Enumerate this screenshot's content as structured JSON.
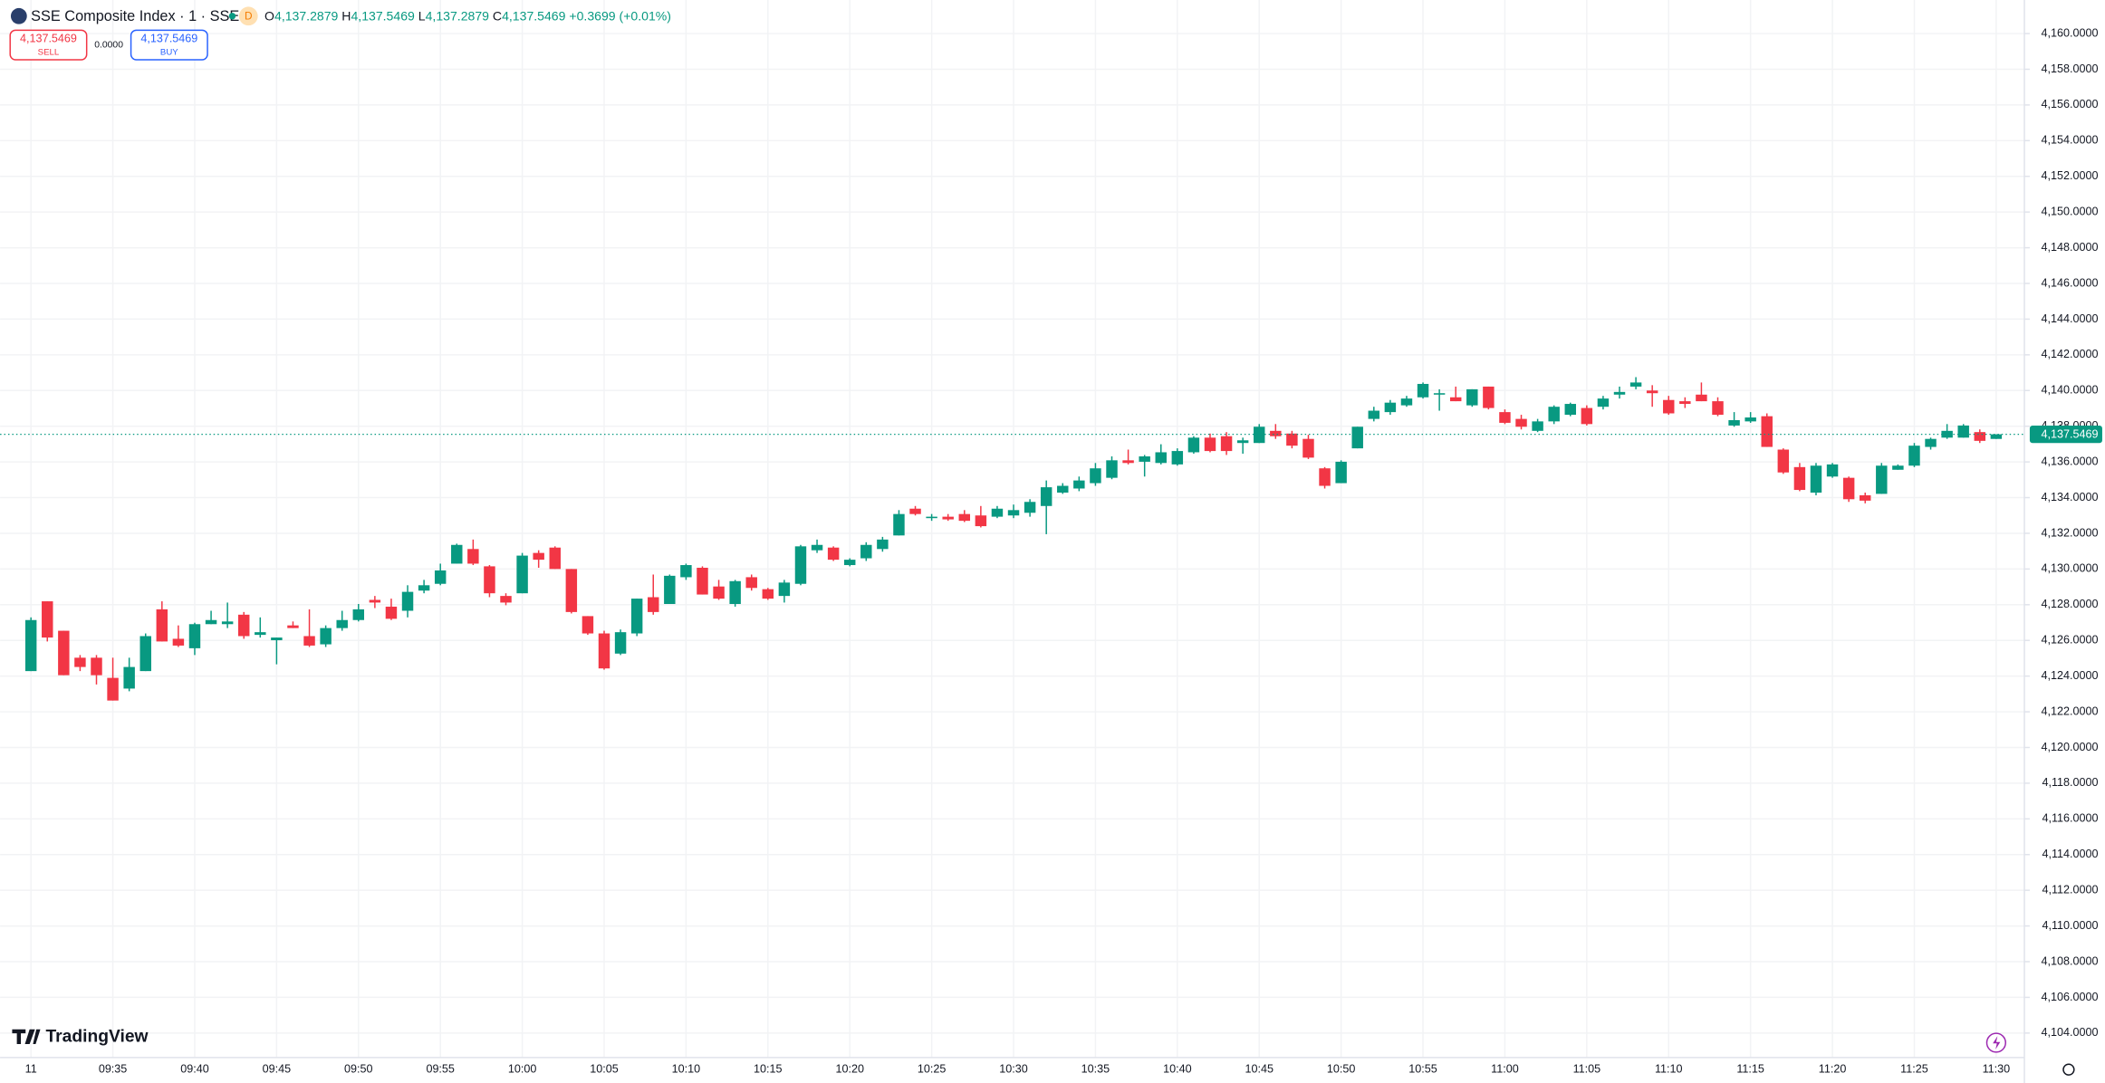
{
  "header": {
    "symbol": "SSE Composite Index · 1 · SSE",
    "badge": "D",
    "ohlc": [
      {
        "key": "O",
        "value": "4,137.2879"
      },
      {
        "key": "H",
        "value": "4,137.5469"
      },
      {
        "key": "L",
        "value": "4,137.2879"
      },
      {
        "key": "C",
        "value": "4,137.5469"
      }
    ],
    "change": "+0.3699 (+0.01%)"
  },
  "trade": {
    "sell_price": "4,137.5469",
    "sell_label": "SELL",
    "spread": "0.0000",
    "buy_price": "4,137.5469",
    "buy_label": "BUY"
  },
  "brand": "TradingView",
  "chart_data": {
    "type": "candlestick",
    "up_color": "#089981",
    "down_color": "#f23645",
    "grid": true,
    "categories": [
      "11",
      null,
      null,
      null,
      null,
      "09:35",
      null,
      null,
      null,
      null,
      "09:40",
      null,
      null,
      null,
      null,
      "09:45",
      null,
      null,
      null,
      null,
      "09:50",
      null,
      null,
      null,
      null,
      "09:55",
      null,
      null,
      null,
      null,
      "10:00",
      null,
      null,
      null,
      null,
      "10:05",
      null,
      null,
      null,
      null,
      "10:10",
      null,
      null,
      null,
      null,
      "10:15",
      null,
      null,
      null,
      null,
      "10:20",
      null,
      null,
      null,
      null,
      "10:25",
      null,
      null,
      null,
      null,
      "10:30",
      null,
      null,
      null,
      null,
      "10:35",
      null,
      null,
      null,
      null,
      "10:40",
      null,
      null,
      null,
      null,
      "10:45",
      null,
      null,
      null,
      null,
      "10:50",
      null,
      null,
      null,
      null,
      "10:55",
      null,
      null,
      null,
      null,
      "11:00",
      null,
      null,
      null,
      null,
      "11:05",
      null,
      null,
      null,
      null,
      "11:10",
      null,
      null,
      null,
      null,
      "11:15",
      null,
      null,
      null,
      null,
      "11:20",
      null,
      null,
      null,
      null,
      "11:25",
      null,
      null,
      null,
      null,
      "11:30"
    ],
    "open": [
      4124.28,
      4128.19,
      4126.54,
      4125.03,
      4125.03,
      4123.9,
      4123.3,
      4124.28,
      4127.74,
      4126.09,
      4125.56,
      4126.91,
      4126.91,
      4127.44,
      4126.31,
      4126.01,
      4126.84,
      4126.24,
      4125.78,
      4126.69,
      4127.14,
      4128.27,
      4127.89,
      4127.66,
      4128.79,
      4129.17,
      4130.3,
      4131.12,
      4130.15,
      4128.49,
      4128.64,
      4130.9,
      4131.2,
      4130.0,
      4127.36,
      4126.39,
      4125.26,
      4126.39,
      4128.42,
      4128.04,
      4129.54,
      4130.07,
      4129.02,
      4128.04,
      4129.54,
      4128.87,
      4128.49,
      4129.17,
      4131.05,
      4131.2,
      4130.22,
      4130.6,
      4131.12,
      4131.88,
      4133.38,
      4132.85,
      4132.93,
      4133.08,
      4133.0,
      4132.93,
      4133.0,
      4133.15,
      4133.53,
      4134.28,
      4134.51,
      4134.81,
      4135.11,
      4136.09,
      4136.01,
      4135.94,
      4135.86,
      4136.54,
      4137.36,
      4137.44,
      4137.06,
      4137.06,
      4137.74,
      4137.59,
      4137.29,
      4135.64,
      4134.81,
      4136.76,
      4138.41,
      4138.79,
      4139.17,
      4139.62,
      4139.77,
      4139.62,
      4139.17,
      4140.22,
      4138.79,
      4138.41,
      4137.74,
      4138.27,
      4138.64,
      4139.02,
      4139.09,
      4139.77,
      4140.22,
      4140.0,
      4139.47,
      4139.4,
      4139.77,
      4139.4,
      4138.04,
      4138.27,
      4138.56,
      4136.69,
      4135.71,
      4134.28,
      4135.18,
      4135.11,
      4134.13,
      4134.21,
      4135.56,
      4135.79,
      4136.84,
      4137.36,
      4137.36,
      4137.67,
      4137.2879
    ],
    "high": [
      4127.29,
      4128.19,
      4126.54,
      4125.18,
      4125.18,
      4125.03,
      4125.03,
      4126.39,
      4128.19,
      4126.84,
      4126.99,
      4127.66,
      4128.12,
      4127.59,
      4127.29,
      4126.16,
      4127.06,
      4127.74,
      4126.84,
      4127.66,
      4128.04,
      4128.49,
      4128.34,
      4129.09,
      4129.39,
      4130.3,
      4131.42,
      4131.65,
      4130.22,
      4128.64,
      4130.9,
      4131.05,
      4131.27,
      4130.0,
      4127.36,
      4126.54,
      4126.61,
      4128.34,
      4129.69,
      4129.69,
      4130.3,
      4130.15,
      4129.39,
      4129.39,
      4129.69,
      4128.94,
      4129.39,
      4131.35,
      4131.65,
      4131.27,
      4130.6,
      4131.5,
      4131.8,
      4133.3,
      4133.53,
      4133.08,
      4133.08,
      4133.3,
      4133.53,
      4133.53,
      4133.61,
      4133.91,
      4134.96,
      4134.81,
      4135.18,
      4135.94,
      4136.31,
      4136.69,
      4136.39,
      4136.99,
      4136.76,
      4137.44,
      4137.59,
      4137.67,
      4137.36,
      4138.12,
      4138.12,
      4137.74,
      4137.52,
      4135.71,
      4136.09,
      4137.97,
      4139.09,
      4139.47,
      4139.7,
      4140.45,
      4140.07,
      4140.22,
      4140.07,
      4140.22,
      4138.94,
      4138.64,
      4138.41,
      4139.17,
      4139.32,
      4139.17,
      4139.7,
      4140.22,
      4140.75,
      4140.3,
      4139.7,
      4139.62,
      4140.45,
      4139.62,
      4138.79,
      4138.79,
      4138.72,
      4136.76,
      4135.94,
      4135.94,
      4135.94,
      4135.18,
      4134.28,
      4135.94,
      4135.86,
      4137.06,
      4137.36,
      4138.12,
      4138.12,
      4137.82,
      4137.5469
    ],
    "low": [
      4124.28,
      4125.94,
      4124.05,
      4124.28,
      4123.53,
      4122.63,
      4123.15,
      4124.28,
      4125.94,
      4125.63,
      4125.18,
      4126.91,
      4126.69,
      4126.09,
      4126.16,
      4124.66,
      4126.69,
      4125.63,
      4125.63,
      4126.54,
      4127.06,
      4127.81,
      4127.14,
      4127.29,
      4128.64,
      4129.09,
      4130.3,
      4130.22,
      4128.42,
      4127.97,
      4128.64,
      4130.07,
      4130.0,
      4127.51,
      4126.31,
      4124.36,
      4125.18,
      4126.24,
      4127.44,
      4128.04,
      4129.39,
      4128.57,
      4128.27,
      4127.89,
      4128.79,
      4128.27,
      4128.12,
      4129.09,
      4130.9,
      4130.45,
      4130.15,
      4130.45,
      4130.97,
      4131.88,
      4133.0,
      4132.7,
      4132.7,
      4132.63,
      4132.33,
      4132.85,
      4132.85,
      4132.93,
      4131.95,
      4134.21,
      4134.36,
      4134.66,
      4135.03,
      4135.86,
      4135.18,
      4135.86,
      4135.79,
      4136.46,
      4136.54,
      4136.39,
      4136.46,
      4137.06,
      4137.29,
      4136.76,
      4136.16,
      4134.51,
      4134.81,
      4136.76,
      4138.27,
      4138.64,
      4139.09,
      4139.55,
      4138.87,
      4139.4,
      4139.09,
      4138.94,
      4138.12,
      4137.82,
      4137.67,
      4138.12,
      4138.56,
      4138.04,
      4138.94,
      4139.55,
      4140.07,
      4139.09,
      4138.64,
      4139.02,
      4139.4,
      4138.56,
      4137.97,
      4138.19,
      4136.84,
      4135.33,
      4134.36,
      4134.13,
      4135.11,
      4133.76,
      4133.68,
      4134.21,
      4135.56,
      4135.71,
      4136.69,
      4137.29,
      4137.36,
      4137.06,
      4137.2879
    ],
    "close": [
      4127.14,
      4126.16,
      4124.05,
      4124.51,
      4124.05,
      4122.63,
      4124.51,
      4126.24,
      4125.94,
      4125.71,
      4126.91,
      4127.14,
      4127.06,
      4126.24,
      4126.46,
      4126.16,
      4126.69,
      4125.71,
      4126.69,
      4127.14,
      4127.74,
      4128.12,
      4127.21,
      4128.72,
      4129.09,
      4129.92,
      4131.35,
      4130.3,
      4128.64,
      4128.12,
      4130.75,
      4130.52,
      4130.0,
      4127.59,
      4126.39,
      4124.43,
      4126.46,
      4128.34,
      4127.59,
      4129.62,
      4130.22,
      4128.57,
      4128.34,
      4129.32,
      4128.94,
      4128.34,
      4129.24,
      4131.27,
      4131.35,
      4130.52,
      4130.52,
      4131.35,
      4131.65,
      4133.08,
      4133.08,
      4132.93,
      4132.78,
      4132.7,
      4132.4,
      4133.38,
      4133.3,
      4133.76,
      4134.58,
      4134.66,
      4134.96,
      4135.64,
      4136.09,
      4135.94,
      4136.31,
      4136.54,
      4136.61,
      4137.36,
      4136.61,
      4136.61,
      4137.21,
      4137.97,
      4137.44,
      4136.91,
      4136.24,
      4134.66,
      4136.01,
      4137.97,
      4138.87,
      4139.32,
      4139.55,
      4140.37,
      4139.85,
      4139.4,
      4140.07,
      4139.02,
      4138.19,
      4137.97,
      4138.27,
      4139.09,
      4139.25,
      4138.12,
      4139.55,
      4139.92,
      4140.45,
      4139.85,
      4138.72,
      4139.25,
      4139.4,
      4138.64,
      4138.34,
      4138.49,
      4136.84,
      4135.41,
      4134.43,
      4135.79,
      4135.86,
      4133.91,
      4133.83,
      4135.79,
      4135.79,
      4136.91,
      4137.29,
      4137.74,
      4138.04,
      4137.18,
      4137.5469
    ],
    "ylim": [
      4102.48,
      4161.88
    ],
    "yticks": [
      {
        "value": 4104,
        "label": "4,104.0000"
      },
      {
        "value": 4106,
        "label": "4,106.0000"
      },
      {
        "value": 4108,
        "label": "4,108.0000"
      },
      {
        "value": 4110,
        "label": "4,110.0000"
      },
      {
        "value": 4112,
        "label": "4,112.0000"
      },
      {
        "value": 4114,
        "label": "4,114.0000"
      },
      {
        "value": 4116,
        "label": "4,116.0000"
      },
      {
        "value": 4118,
        "label": "4,118.0000"
      },
      {
        "value": 4120,
        "label": "4,120.0000"
      },
      {
        "value": 4122,
        "label": "4,122.0000"
      },
      {
        "value": 4124,
        "label": "4,124.0000"
      },
      {
        "value": 4126,
        "label": "4,126.0000"
      },
      {
        "value": 4128,
        "label": "4,128.0000"
      },
      {
        "value": 4130,
        "label": "4,130.0000"
      },
      {
        "value": 4132,
        "label": "4,132.0000"
      },
      {
        "value": 4134,
        "label": "4,134.0000"
      },
      {
        "value": 4136,
        "label": "4,136.0000"
      },
      {
        "value": 4138,
        "label": "4,138.0000"
      },
      {
        "value": 4140,
        "label": "4,140.0000"
      },
      {
        "value": 4142,
        "label": "4,142.0000"
      },
      {
        "value": 4144,
        "label": "4,144.0000"
      },
      {
        "value": 4146,
        "label": "4,146.0000"
      },
      {
        "value": 4148,
        "label": "4,148.0000"
      },
      {
        "value": 4150,
        "label": "4,150.0000"
      },
      {
        "value": 4152,
        "label": "4,152.0000"
      },
      {
        "value": 4154,
        "label": "4,154.0000"
      },
      {
        "value": 4156,
        "label": "4,156.0000"
      },
      {
        "value": 4158,
        "label": "4,158.0000"
      },
      {
        "value": 4160,
        "label": "4,160.0000"
      }
    ],
    "last_price": {
      "value": 4137.5469,
      "label": "4,137.5469"
    }
  }
}
